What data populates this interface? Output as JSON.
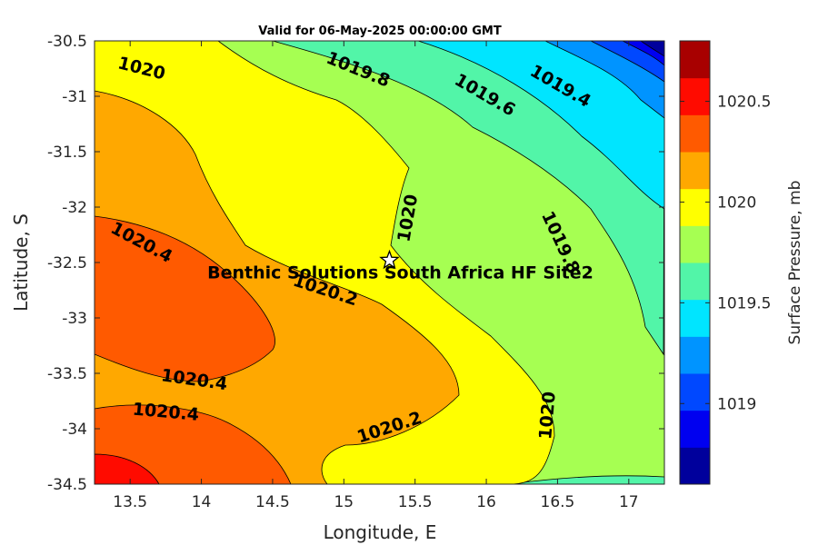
{
  "chart_data": {
    "type": "contour",
    "title": "Valid for 06-May-2025 00:00:00 GMT",
    "xlabel": "Longitude, E",
    "ylabel": "Latitude, S",
    "xlim": [
      13.25,
      17.25
    ],
    "ylim": [
      -34.5,
      -30.5
    ],
    "x_ticks": [
      13.5,
      14,
      14.5,
      15,
      15.5,
      16,
      16.5,
      17
    ],
    "x_tick_labels": [
      "13.5",
      "14",
      "14.5",
      "15",
      "15.5",
      "16",
      "16.5",
      "17"
    ],
    "y_ticks": [
      -30.5,
      -31,
      -31.5,
      -32,
      -32.5,
      -33,
      -33.5,
      -34,
      -34.5
    ],
    "y_tick_labels": [
      "-30.5",
      "-31",
      "-31.5",
      "-32",
      "-32.5",
      "-33",
      "-33.5",
      "-34",
      "-34.5"
    ],
    "grid": false,
    "colorbar": {
      "label": "Surface Pressure, mb",
      "range": [
        1018.6,
        1020.8
      ],
      "level_step": 0.1333,
      "ticks": [
        1019,
        1019.5,
        1020,
        1020.5
      ],
      "tick_labels": [
        "1019",
        "1019.5",
        "1020",
        "1020.5"
      ],
      "colors": [
        "#00009c",
        "#0000f0",
        "#0048ff",
        "#0094ff",
        "#00e5ff",
        "#52f5a8",
        "#a6ff52",
        "#ffff00",
        "#ffa800",
        "#ff5a00",
        "#ff0b00",
        "#a80000"
      ]
    },
    "contour_labels": [
      {
        "text": "1020",
        "lon": 13.58,
        "lat": -30.75,
        "angle": 14
      },
      {
        "text": "1019.8",
        "lon": 15.1,
        "lat": -30.76,
        "angle": 22
      },
      {
        "text": "1019.6",
        "lon": 15.99,
        "lat": -30.99,
        "angle": 30
      },
      {
        "text": "1019.4",
        "lon": 16.52,
        "lat": -30.91,
        "angle": 30
      },
      {
        "text": "1020",
        "lon": 15.45,
        "lat": -32.1,
        "angle": -80
      },
      {
        "text": "1019.8",
        "lon": 16.52,
        "lat": -32.32,
        "angle": 65
      },
      {
        "text": "1020.4",
        "lon": 13.58,
        "lat": -32.32,
        "angle": 28
      },
      {
        "text": "1020.2",
        "lon": 14.87,
        "lat": -32.75,
        "angle": 18
      },
      {
        "text": "1020.4",
        "lon": 13.95,
        "lat": -33.56,
        "angle": 8
      },
      {
        "text": "1020.4",
        "lon": 13.75,
        "lat": -33.85,
        "angle": 5
      },
      {
        "text": "1020.2",
        "lon": 15.32,
        "lat": -33.99,
        "angle": -18
      },
      {
        "text": "1020",
        "lon": 16.43,
        "lat": -33.88,
        "angle": -85
      }
    ],
    "sites": [
      {
        "name": "Benthic Solutions South Africa HF Site2",
        "lon": 15.32,
        "lat": -32.48,
        "marker": "star"
      }
    ]
  }
}
